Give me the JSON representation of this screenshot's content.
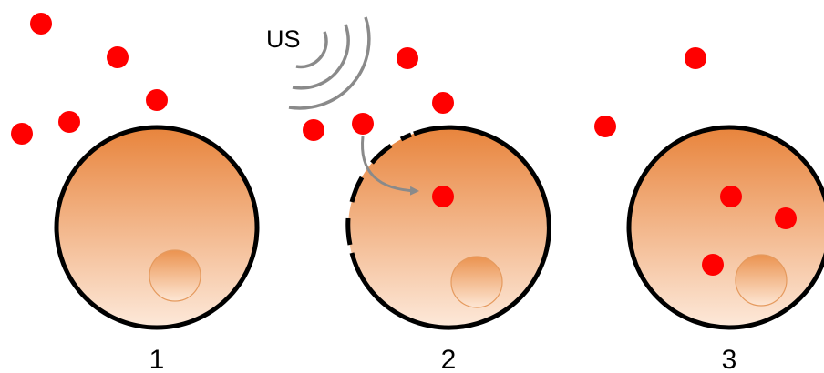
{
  "labels": {
    "us": "US",
    "steps": [
      "1",
      "2",
      "3"
    ]
  }
}
